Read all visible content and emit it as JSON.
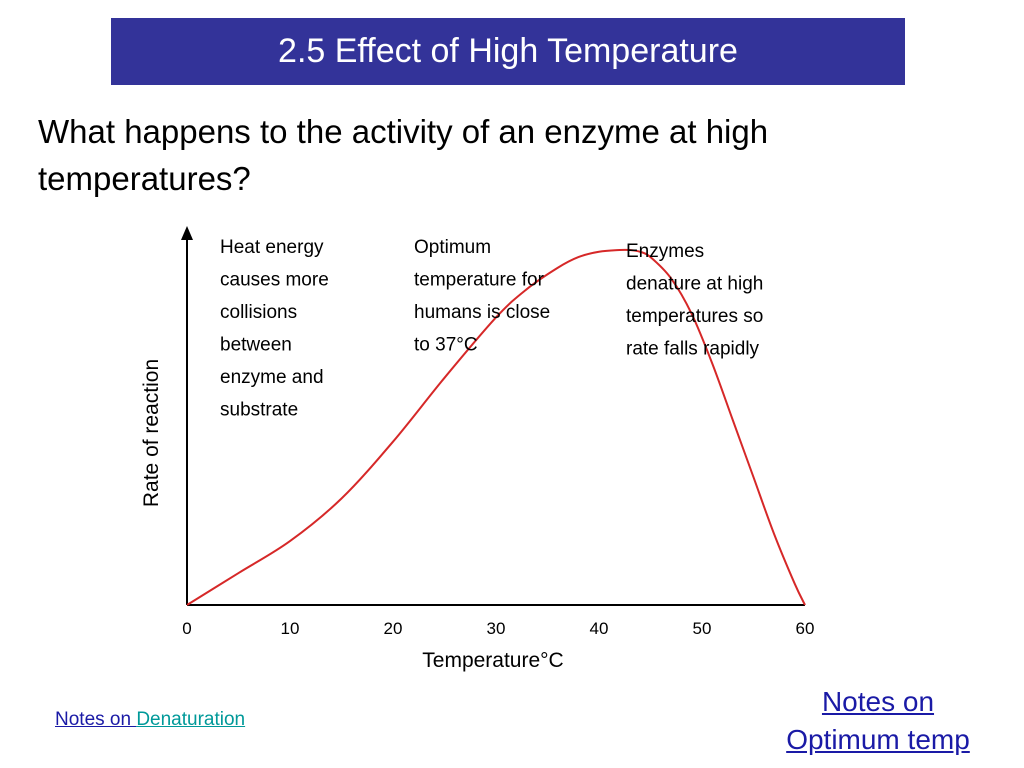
{
  "slide": {
    "title": "2.5 Effect of High Temperature",
    "question_line1": "What happens to the activity of an enzyme at high",
    "question_line2": "temperatures?"
  },
  "links": {
    "notes_on_prefix": "Notes on ",
    "denaturation": "Denaturation",
    "optimum_line1": "Notes on",
    "optimum_line2": "Optimum temp"
  },
  "colors": {
    "title_bg": "#333399",
    "curve": "#d62828",
    "link_blue": "#1a1aa6",
    "link_teal": "#009999"
  },
  "chart_data": {
    "type": "line",
    "xlabel": "Temperature°C",
    "ylabel": "Rate of reaction",
    "xlim": [
      0,
      60
    ],
    "ylim": [
      0,
      100
    ],
    "x_ticks": [
      "0",
      "10",
      "20",
      "30",
      "40",
      "50",
      "60"
    ],
    "grid": false,
    "series": [
      {
        "x": [
          0,
          5,
          10,
          15,
          20,
          25,
          30,
          33,
          36,
          38,
          40,
          42,
          43,
          44,
          45,
          47,
          49,
          51,
          53,
          55,
          57,
          59,
          60
        ],
        "y": [
          0,
          9,
          18,
          30,
          46,
          64,
          81,
          89,
          95,
          98,
          99.5,
          100,
          100,
          99.5,
          98,
          92,
          82,
          68,
          52,
          36,
          20,
          6,
          0
        ]
      }
    ],
    "annotations": [
      {
        "lines": [
          "Heat energy",
          "causes more",
          "collisions",
          "between",
          "enzyme and",
          "substrate"
        ]
      },
      {
        "lines": [
          "Optimum",
          "temperature for",
          "humans is close",
          "to 37°C"
        ]
      },
      {
        "lines": [
          "Enzymes",
          "denature at high",
          "temperatures so",
          "rate falls rapidly"
        ]
      }
    ]
  }
}
